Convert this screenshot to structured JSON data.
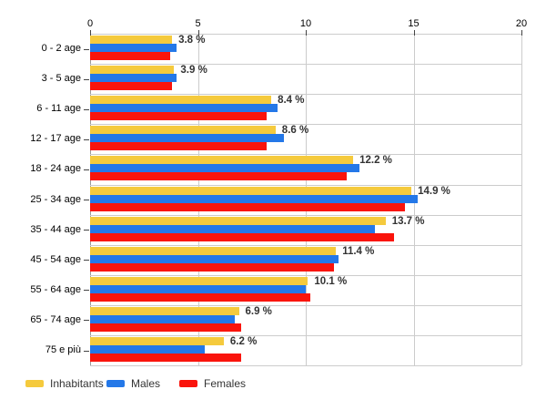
{
  "chart_data": {
    "type": "bar",
    "orientation": "horizontal",
    "title": "",
    "xlabel": "",
    "ylabel": "",
    "xlim": [
      0,
      20
    ],
    "xticks": [
      "0",
      "5",
      "10",
      "15",
      "20"
    ],
    "grid": true,
    "legend_position": "bottom-left",
    "categories": [
      "0 - 2 age",
      "3 - 5 age",
      "6 - 11 age",
      "12 - 17 age",
      "18 - 24 age",
      "25 - 34 age",
      "35 - 44 age",
      "45 - 54 age",
      "55 - 64 age",
      "65 - 74 age",
      "75 e più"
    ],
    "series": [
      {
        "name": "Inhabitants",
        "color": "#F5CA3D",
        "values": [
          3.8,
          3.9,
          8.4,
          8.6,
          12.2,
          14.9,
          13.7,
          11.4,
          10.1,
          6.9,
          6.2
        ]
      },
      {
        "name": "Males",
        "color": "#2478E8",
        "values": [
          4.0,
          4.0,
          8.7,
          9.0,
          12.5,
          15.2,
          13.2,
          11.5,
          10.0,
          6.7,
          5.3
        ]
      },
      {
        "name": "Females",
        "color": "#FA140C",
        "values": [
          3.7,
          3.8,
          8.2,
          8.2,
          11.9,
          14.6,
          14.1,
          11.3,
          10.2,
          7.0,
          7.0
        ]
      }
    ],
    "data_labels": [
      "3.8 %",
      "3.9 %",
      "8.4 %",
      "8.6 %",
      "12.2 %",
      "14.9 %",
      "13.7 %",
      "11.4 %",
      "10.1 %",
      "6.9 %",
      "6.2 %"
    ]
  }
}
